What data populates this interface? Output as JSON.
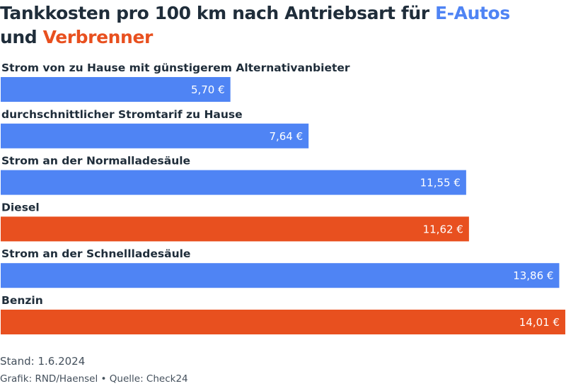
{
  "title": {
    "part1": "Tankkosten pro 100 km nach Antriebsart für ",
    "highlight_ev": "E-Autos",
    "part2": " und ",
    "highlight_ice": "Verbrenner"
  },
  "colors": {
    "ev": "#4f84f4",
    "ice": "#e8501f",
    "text": "#1f2d3a"
  },
  "chart_data": {
    "type": "bar",
    "orientation": "horizontal",
    "categories": [
      "Strom von zu Hause mit günstigerem Alternativanbieter",
      "durchschnittlicher Stromtarif zu Hause",
      "Strom an der Normalladesäule",
      "Diesel",
      "Strom an der Schnellladesäule",
      "Benzin"
    ],
    "values": [
      5.7,
      7.64,
      11.55,
      11.62,
      13.86,
      14.01
    ],
    "value_labels": [
      "5,70 €",
      "7,64 €",
      "11,55 €",
      "11,62 €",
      "13,86 €",
      "14,01 €"
    ],
    "groups": [
      "E-Autos",
      "E-Autos",
      "E-Autos",
      "Verbrenner",
      "E-Autos",
      "Verbrenner"
    ],
    "xlim": [
      0,
      14.01
    ],
    "grid": false,
    "legend": "none"
  },
  "footer": {
    "stand": "Stand: 1.6.2024",
    "credits": "Grafik: RND/Haensel • Quelle: Check24"
  }
}
